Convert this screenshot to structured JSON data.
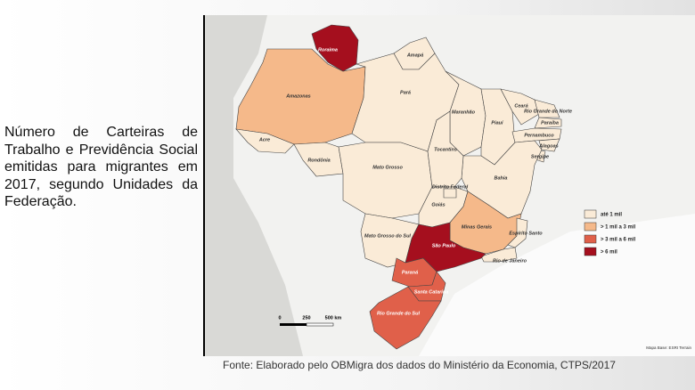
{
  "description": "Número de Carteiras de Trabalho e Previdência Social emitidas para migrantes em 2017, segundo Unidades da Federação.",
  "source": "Fonte: Elaborado pelo OBMigra dos dados do Ministério da Economia, CTPS/2017",
  "map": {
    "legend": [
      {
        "label": "até 1 mil",
        "color": "#faebd7"
      },
      {
        "label": "> 1 mil a 3 mil",
        "color": "#f5b98a"
      },
      {
        "label": "> 3 mil a 6 mil",
        "color": "#e0604a"
      },
      {
        "label": "> 6 mil",
        "color": "#a50f1e"
      }
    ],
    "states": [
      {
        "label": "Roraima",
        "category": 3
      },
      {
        "label": "Amapá",
        "category": 0
      },
      {
        "label": "Amazonas",
        "category": 1
      },
      {
        "label": "Pará",
        "category": 0
      },
      {
        "label": "Acre",
        "category": 0
      },
      {
        "label": "Rondônia",
        "category": 0
      },
      {
        "label": "Mato Grosso",
        "category": 0
      },
      {
        "label": "Maranhão",
        "category": 0
      },
      {
        "label": "Piauí",
        "category": 0
      },
      {
        "label": "Ceará",
        "category": 0
      },
      {
        "label": "Rio Grande do Norte",
        "category": 0
      },
      {
        "label": "Paraíba",
        "category": 0
      },
      {
        "label": "Pernambuco",
        "category": 0
      },
      {
        "label": "Alagoas",
        "category": 0
      },
      {
        "label": "Sergipe",
        "category": 0
      },
      {
        "label": "Bahia",
        "category": 0
      },
      {
        "label": "Tocantins",
        "category": 0
      },
      {
        "label": "Goiás",
        "category": 0
      },
      {
        "label": "Distrito Federal",
        "category": 0
      },
      {
        "label": "Mato Grosso do Sul",
        "category": 0
      },
      {
        "label": "Minas Gerais",
        "category": 1
      },
      {
        "label": "Espírito Santo",
        "category": 0
      },
      {
        "label": "Rio de Janeiro",
        "category": 0
      },
      {
        "label": "São Paulo",
        "category": 3
      },
      {
        "label": "Paraná",
        "category": 2
      },
      {
        "label": "Santa Catarina",
        "category": 2
      },
      {
        "label": "Rio Grande do Sul",
        "category": 2
      }
    ],
    "scale_labels": [
      "0",
      "250",
      "500 km"
    ],
    "basemap_credit": "Mapa Base: ESRI Terrain"
  }
}
